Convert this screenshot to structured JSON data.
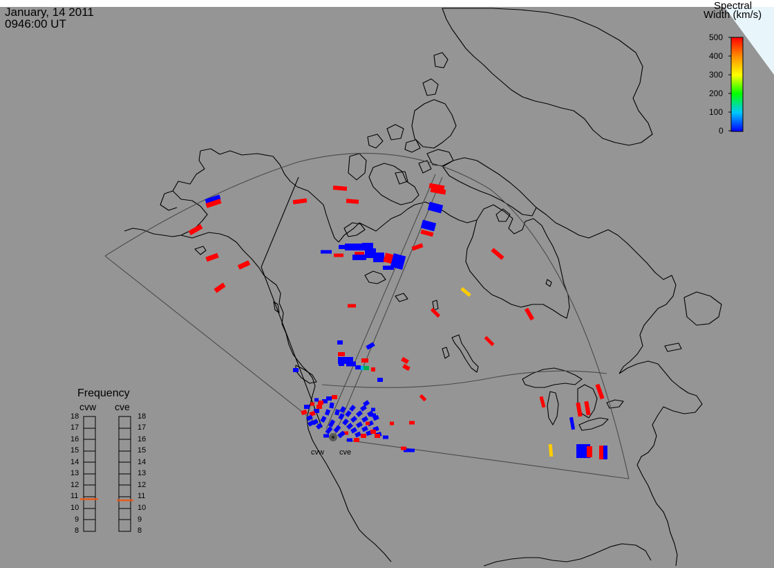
{
  "header": {
    "date": "January, 14 2011",
    "time": "0946:00 UT"
  },
  "colorbar": {
    "title_line1": "Spectral",
    "title_line2": "Width (km/s)",
    "ticks": [
      "500",
      "400",
      "300",
      "200",
      "100",
      "0"
    ],
    "scale_colors": [
      "#0000ff",
      "#00c8ff",
      "#00ff00",
      "#ffff00",
      "#ff8c00",
      "#ff0000"
    ]
  },
  "radars": {
    "west_label": "cvw",
    "east_label": "cve"
  },
  "frequency_panel": {
    "title": "Frequency",
    "col_west": "cvw",
    "col_east": "cve",
    "levels": [
      "18",
      "17",
      "16",
      "15",
      "14",
      "13",
      "12",
      "11",
      "10",
      "9",
      "8"
    ],
    "cvw_marker_mhz": 10.8,
    "cve_marker_mhz": 10.7,
    "marker_color": "#e85a1a"
  }
}
